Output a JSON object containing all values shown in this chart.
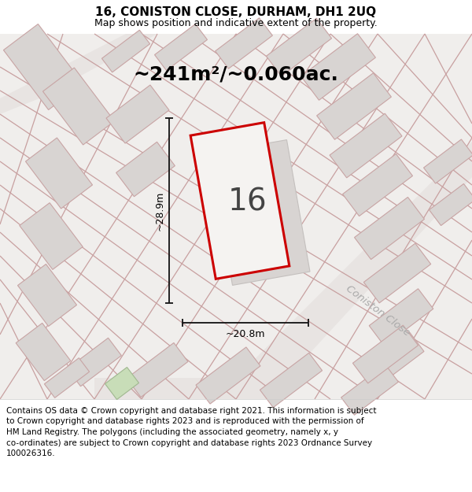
{
  "title": "16, CONISTON CLOSE, DURHAM, DH1 2UQ",
  "subtitle": "Map shows position and indicative extent of the property.",
  "area_text": "~241m²/~0.060ac.",
  "width_label": "~20.8m",
  "height_label": "~28.9m",
  "property_number": "16",
  "street_label": "Coniston Close",
  "footer_lines": [
    "Contains OS data © Crown copyright and database right 2021. This information is subject",
    "to Crown copyright and database rights 2023 and is reproduced with the permission of",
    "HM Land Registry. The polygons (including the associated geometry, namely x, y",
    "co-ordinates) are subject to Crown copyright and database rights 2023 Ordnance Survey",
    "100026316."
  ],
  "map_bg": "#f0eeec",
  "building_fill": "#d8d4d2",
  "building_edge": "#c8a4a4",
  "road_fill": "#e8e4e2",
  "property_fill": "#f5f3f1",
  "property_edge": "#cc0000",
  "green_fill": "#c8ddb8",
  "green_edge": "#a0b890",
  "dim_color": "#111111",
  "street_color": "#aaaaaa",
  "title_fontsize": 11,
  "subtitle_fontsize": 9,
  "area_fontsize": 18,
  "number_fontsize": 28,
  "footer_fontsize": 7.5
}
